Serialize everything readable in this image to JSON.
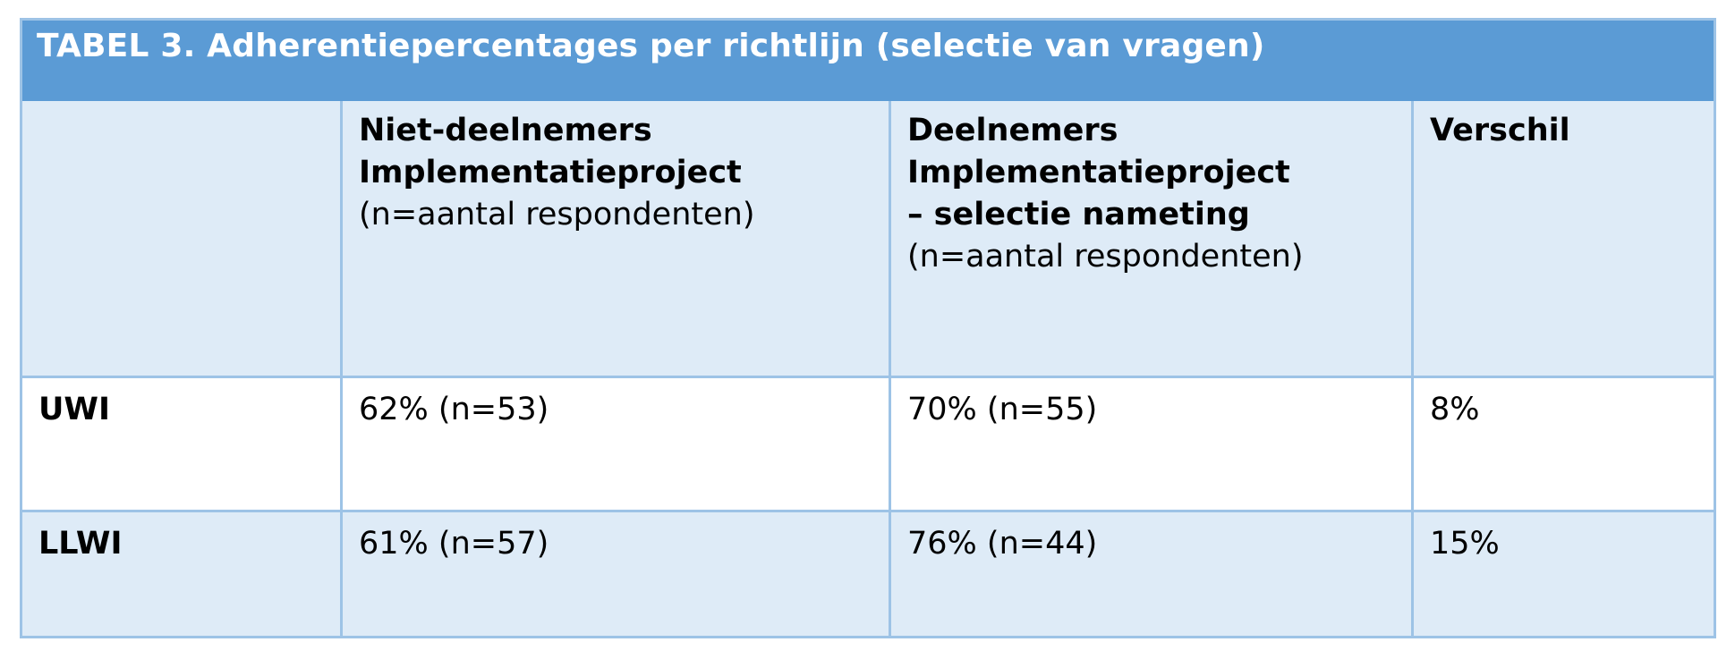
{
  "table": {
    "title": "TABEL 3. Adherentiepercentages per richtlijn (selectie van vragen)",
    "headers": [
      {
        "bold_lines": [],
        "normal_lines": []
      },
      {
        "bold_lines": [
          "Niet-deelnemers",
          "Implementatieproject"
        ],
        "normal_lines": [
          "(n=aantal respondenten)"
        ]
      },
      {
        "bold_lines": [
          "Deelnemers",
          "Implementatieproject",
          "– selectie nameting"
        ],
        "normal_lines": [
          "(n=aantal respondenten)"
        ]
      },
      {
        "bold_lines": [
          "Verschil"
        ],
        "normal_lines": []
      }
    ],
    "rows": [
      {
        "label": "UWI",
        "non_participants": "62% (n=53)",
        "participants": "70% (n=55)",
        "difference": "8%"
      },
      {
        "label": "LLWI",
        "non_participants": "61% (n=57)",
        "participants": "76%  (n=44)",
        "difference": "15%"
      }
    ]
  },
  "colors": {
    "title_background": "#5b9bd5",
    "title_text": "#ffffff",
    "banded_row_background": "#deebf7",
    "grid_lines": "#9dc3e6"
  }
}
